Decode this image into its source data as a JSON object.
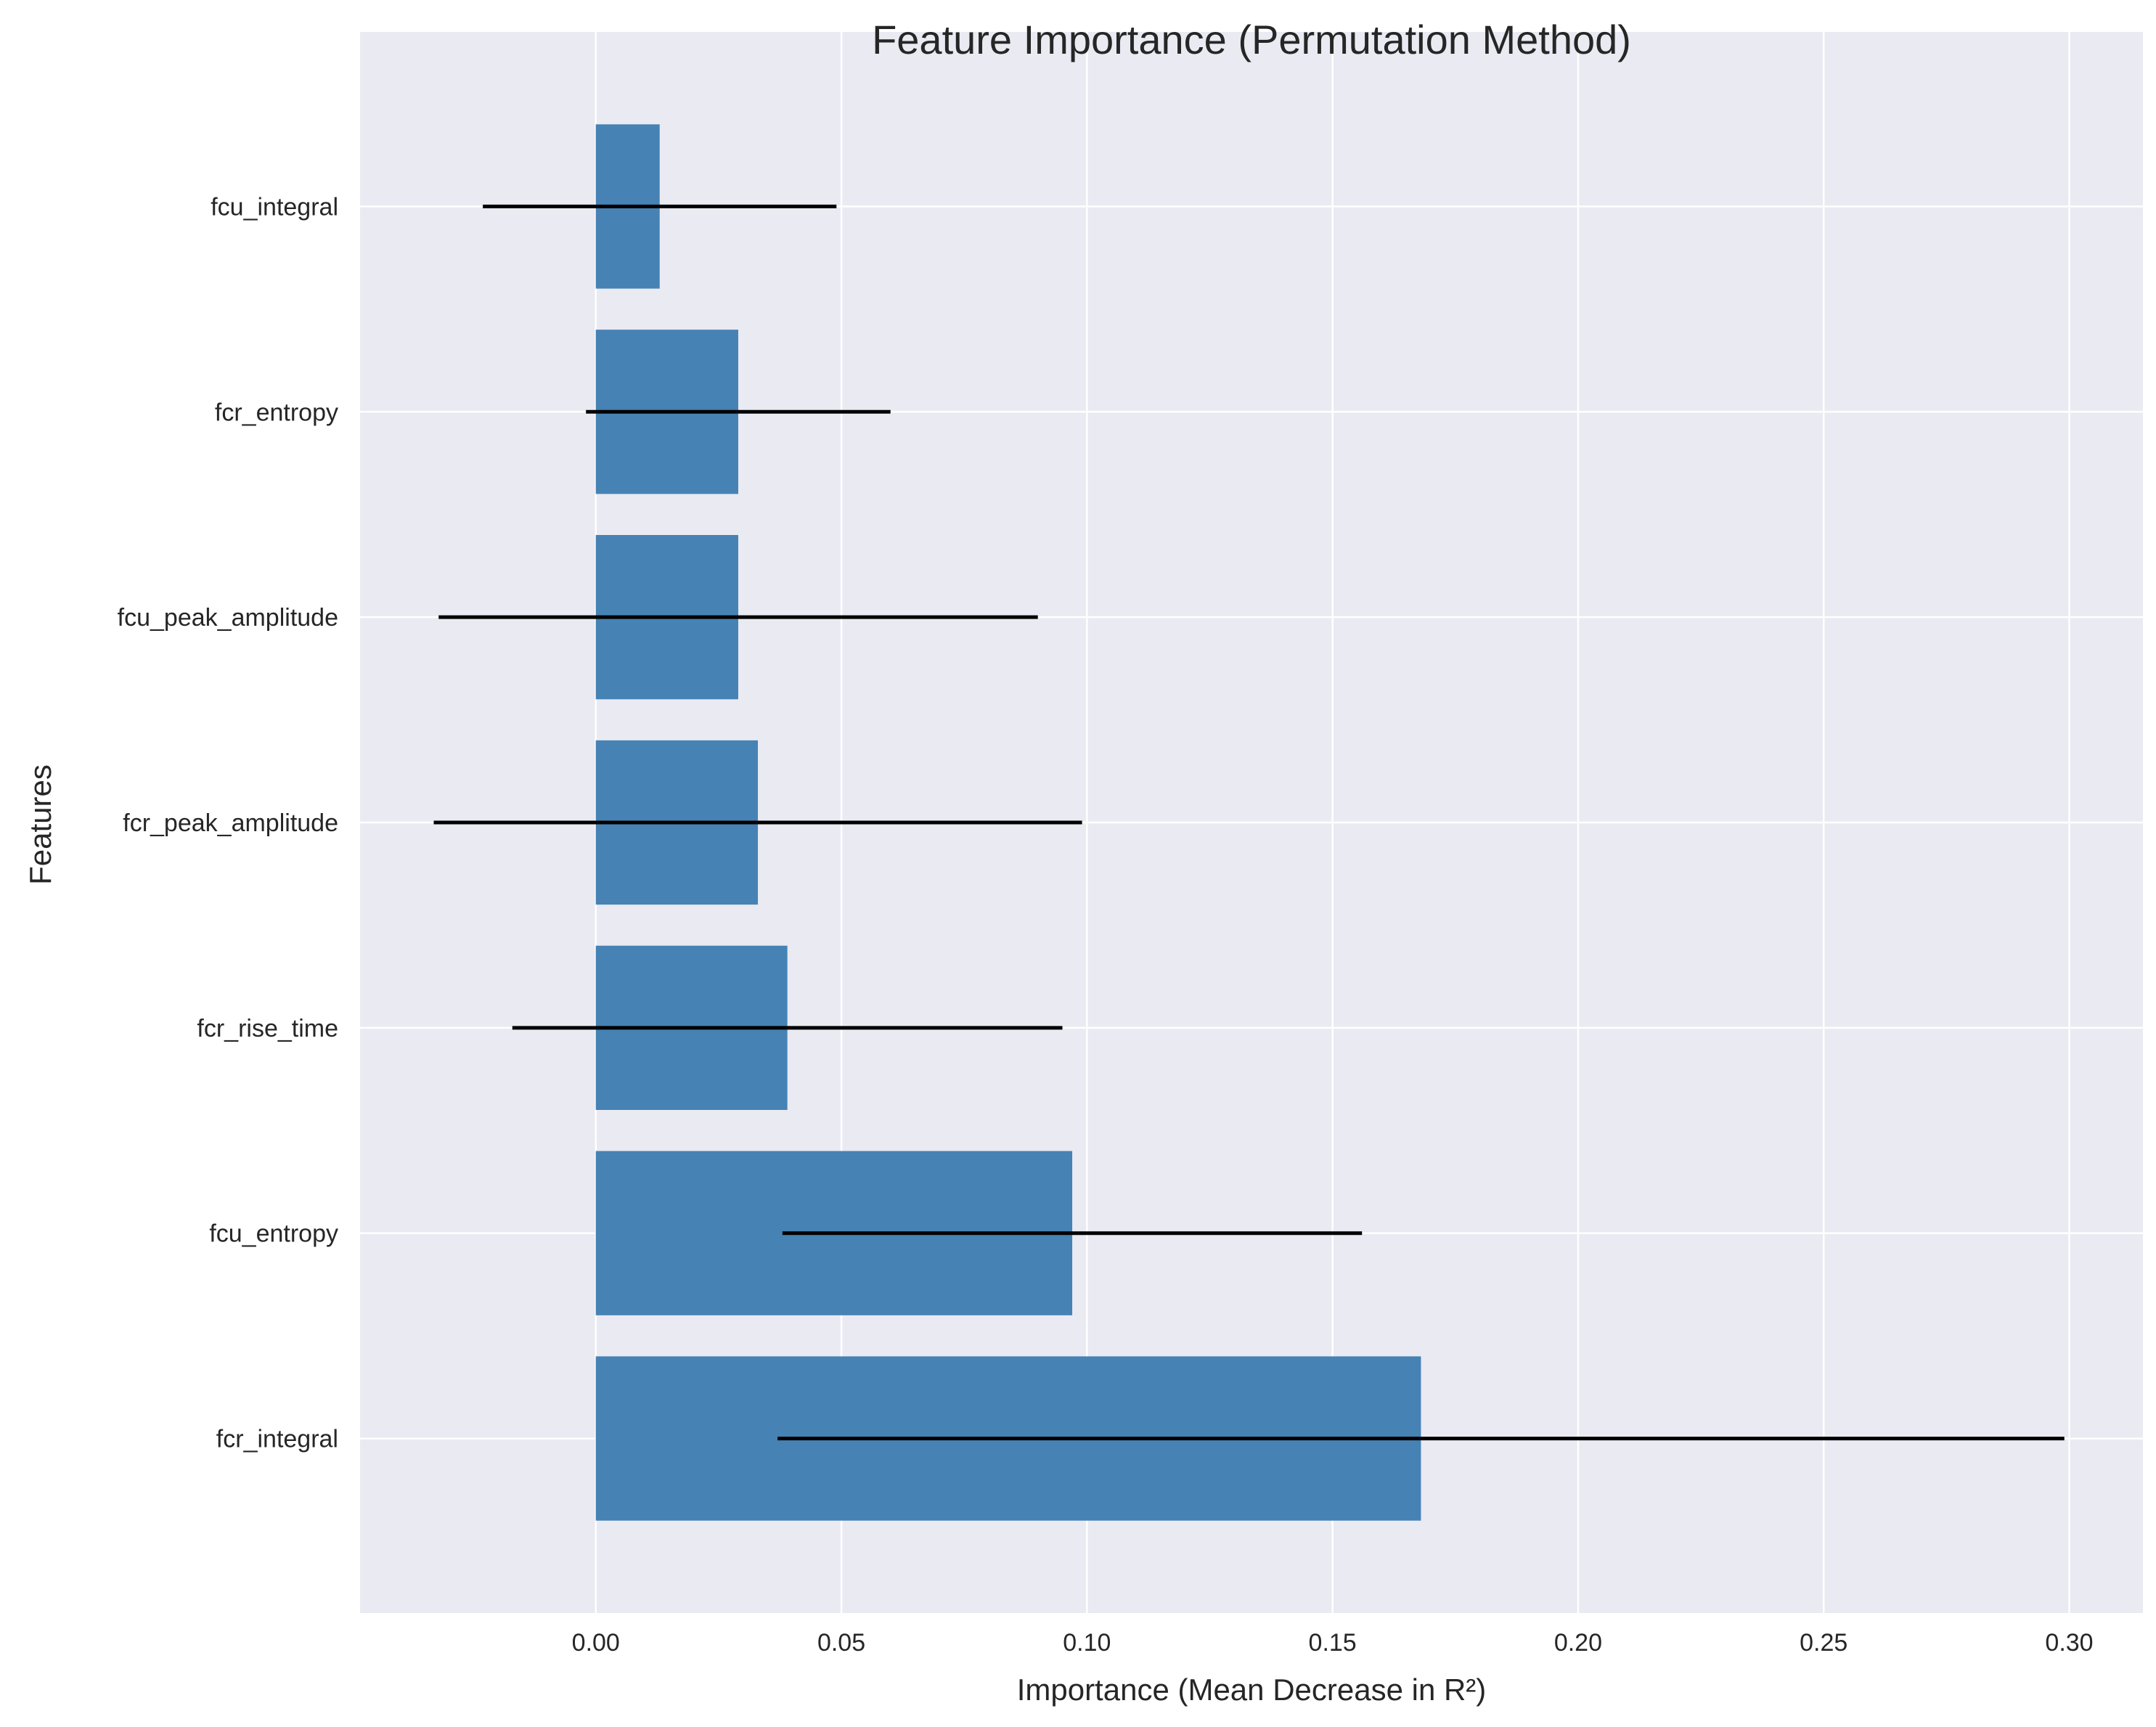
{
  "chart_data": {
    "type": "bar",
    "orientation": "horizontal",
    "title": "Feature Importance (Permutation Method)",
    "xlabel": "Importance (Mean Decrease in R²)",
    "ylabel": "Features",
    "categories": [
      "fcr_integral",
      "fcu_entropy",
      "fcr_rise_time",
      "fcr_peak_amplitude",
      "fcu_peak_amplitude",
      "fcr_entropy",
      "fcu_integral"
    ],
    "values": [
      0.168,
      0.097,
      0.039,
      0.033,
      0.029,
      0.029,
      0.013
    ],
    "errors": [
      0.131,
      0.059,
      0.056,
      0.066,
      0.061,
      0.031,
      0.036
    ],
    "xlim": [
      -0.048,
      0.315
    ],
    "xticks": [
      0.0,
      0.05,
      0.1,
      0.15,
      0.2,
      0.25,
      0.3
    ],
    "xtick_labels": [
      "0.00",
      "0.05",
      "0.10",
      "0.15",
      "0.20",
      "0.25",
      "0.30"
    ],
    "grid": true,
    "colors": {
      "bar": "#4682b4",
      "error_bar": "#000000",
      "plot_background": "#eaeaf2",
      "grid": "#ffffff"
    }
  }
}
